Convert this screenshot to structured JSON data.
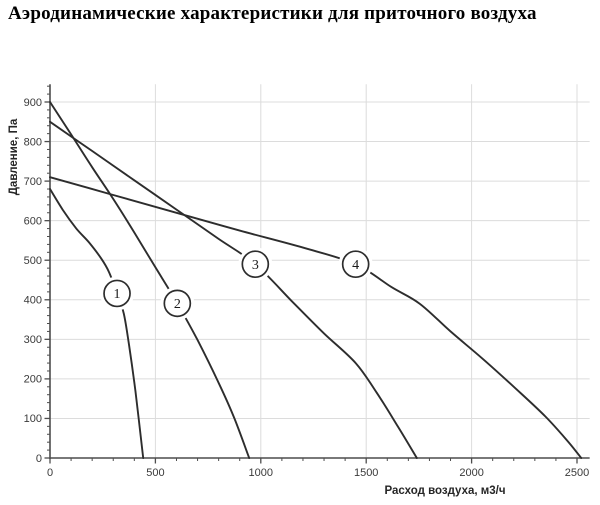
{
  "title": "Аэродинамические характеристики для приточного воздуха",
  "chart_data": {
    "type": "line",
    "title": "Аэродинамические характеристики для приточного воздуха",
    "xlabel": "Расход воздуха, м3/ч",
    "ylabel": "Давление, Па",
    "xlim": [
      0,
      2560
    ],
    "ylim": [
      0,
      945
    ],
    "x_major_ticks": [
      0,
      500,
      1000,
      1500,
      2000,
      2500
    ],
    "x_minor_step": 100,
    "y_major_ticks": [
      0,
      100,
      200,
      300,
      400,
      500,
      600,
      700,
      800,
      900
    ],
    "y_minor_step": 20,
    "grid": true,
    "colors": {
      "curve": "#2d2d2d",
      "grid": "#dcdcdc",
      "axis": "#4d4d4d",
      "tick_label": "#3a3a3a",
      "marker_fill": "#ffffff",
      "title": "#000000"
    },
    "series": [
      {
        "label": "1",
        "marker": {
          "x": 318,
          "y": 416
        },
        "points": [
          [
            0,
            680
          ],
          [
            60,
            628
          ],
          [
            125,
            580
          ],
          [
            185,
            545
          ],
          [
            242,
            505
          ],
          [
            280,
            470
          ],
          [
            318,
            416
          ],
          [
            350,
            365
          ],
          [
            375,
            285
          ],
          [
            405,
            170
          ],
          [
            442,
            0
          ]
        ]
      },
      {
        "label": "2",
        "marker": {
          "x": 604,
          "y": 391
        },
        "points": [
          [
            0,
            900
          ],
          [
            100,
            818
          ],
          [
            200,
            735
          ],
          [
            300,
            655
          ],
          [
            400,
            570
          ],
          [
            500,
            482
          ],
          [
            604,
            391
          ],
          [
            700,
            298
          ],
          [
            800,
            190
          ],
          [
            875,
            100
          ],
          [
            945,
            0
          ]
        ]
      },
      {
        "label": "3",
        "marker": {
          "x": 974,
          "y": 490
        },
        "points": [
          [
            0,
            850
          ],
          [
            200,
            776
          ],
          [
            400,
            702
          ],
          [
            600,
            628
          ],
          [
            800,
            554
          ],
          [
            974,
            490
          ],
          [
            1150,
            395
          ],
          [
            1300,
            315
          ],
          [
            1450,
            240
          ],
          [
            1550,
            165
          ],
          [
            1650,
            80
          ],
          [
            1740,
            0
          ]
        ]
      },
      {
        "label": "4",
        "marker": {
          "x": 1450,
          "y": 490
        },
        "points": [
          [
            0,
            710
          ],
          [
            300,
            665
          ],
          [
            600,
            620
          ],
          [
            900,
            575
          ],
          [
            1200,
            532
          ],
          [
            1450,
            490
          ],
          [
            1620,
            432
          ],
          [
            1754,
            390
          ],
          [
            1900,
            320
          ],
          [
            2050,
            252
          ],
          [
            2200,
            180
          ],
          [
            2350,
            105
          ],
          [
            2460,
            40
          ],
          [
            2520,
            0
          ]
        ]
      }
    ]
  }
}
